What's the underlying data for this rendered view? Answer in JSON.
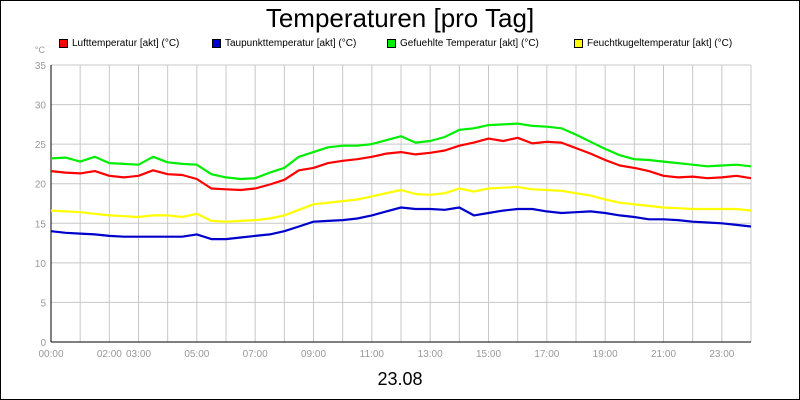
{
  "chart_data": {
    "type": "line",
    "title": "Temperaturen [pro Tag]",
    "xlabel": "23.08",
    "ylabel": "°C",
    "ylim": [
      0,
      35
    ],
    "yticks": [
      0,
      5,
      10,
      15,
      20,
      25,
      30,
      35
    ],
    "xlim": [
      0,
      24
    ],
    "xtick_labels": [
      "00:00",
      "02:00",
      "03:00",
      "05:00",
      "07:00",
      "09:00",
      "11:00",
      "13:00",
      "15:00",
      "17:00",
      "19:00",
      "21:00",
      "23:00"
    ],
    "xtick_hours": [
      0,
      2,
      3,
      5,
      7,
      9,
      11,
      13,
      15,
      17,
      19,
      21,
      23
    ],
    "grid": true,
    "legend_position": "top",
    "x": [
      0,
      0.5,
      1,
      1.5,
      2,
      2.5,
      3,
      3.5,
      4,
      4.5,
      5,
      5.5,
      6,
      6.5,
      7,
      7.5,
      8,
      8.5,
      9,
      9.5,
      10,
      10.5,
      11,
      11.5,
      12,
      12.5,
      13,
      13.5,
      14,
      14.5,
      15,
      15.5,
      16,
      16.5,
      17,
      17.5,
      18,
      18.5,
      19,
      19.5,
      20,
      20.5,
      21,
      21.5,
      22,
      22.5,
      23,
      23.5,
      24
    ],
    "series": [
      {
        "name": "Lufttemperatur [akt] (°C)",
        "color": "#ff0000",
        "values": [
          21.6,
          21.4,
          21.3,
          21.6,
          21.0,
          20.8,
          21.0,
          21.7,
          21.2,
          21.1,
          20.6,
          19.4,
          19.3,
          19.2,
          19.4,
          19.9,
          20.5,
          21.7,
          22.0,
          22.6,
          22.9,
          23.1,
          23.4,
          23.8,
          24.0,
          23.7,
          23.9,
          24.2,
          24.8,
          25.2,
          25.7,
          25.4,
          25.8,
          25.1,
          25.3,
          25.2,
          24.5,
          23.8,
          23.0,
          22.3,
          22.0,
          21.6,
          21.0,
          20.8,
          20.9,
          20.7,
          20.8,
          21.0,
          20.7
        ]
      },
      {
        "name": "Taupunkttemperatur [akt] (°C)",
        "color": "#0000cc",
        "values": [
          14.0,
          13.8,
          13.7,
          13.6,
          13.4,
          13.3,
          13.3,
          13.3,
          13.3,
          13.3,
          13.6,
          13.0,
          13.0,
          13.2,
          13.4,
          13.6,
          14.0,
          14.6,
          15.2,
          15.3,
          15.4,
          15.6,
          16.0,
          16.5,
          17.0,
          16.8,
          16.8,
          16.7,
          17.0,
          16.0,
          16.3,
          16.6,
          16.8,
          16.8,
          16.5,
          16.3,
          16.4,
          16.5,
          16.3,
          16.0,
          15.8,
          15.5,
          15.5,
          15.4,
          15.2,
          15.1,
          15.0,
          14.8,
          14.6
        ]
      },
      {
        "name": "Gefuehlte Temperatur [akt] (°C)",
        "color": "#00ee00",
        "values": [
          23.2,
          23.3,
          22.8,
          23.4,
          22.6,
          22.5,
          22.4,
          23.4,
          22.7,
          22.5,
          22.4,
          21.2,
          20.8,
          20.6,
          20.7,
          21.4,
          22.0,
          23.4,
          24.0,
          24.6,
          24.8,
          24.8,
          25.0,
          25.5,
          26.0,
          25.2,
          25.4,
          25.9,
          26.8,
          27.0,
          27.4,
          27.5,
          27.6,
          27.3,
          27.2,
          27.0,
          26.2,
          25.3,
          24.4,
          23.6,
          23.1,
          23.0,
          22.8,
          22.6,
          22.4,
          22.2,
          22.3,
          22.4,
          22.2
        ]
      },
      {
        "name": "Feuchtkugeltemperatur [akt] (°C)",
        "color": "#ffff00",
        "values": [
          16.6,
          16.5,
          16.4,
          16.2,
          16.0,
          15.9,
          15.8,
          16.0,
          16.0,
          15.8,
          16.2,
          15.3,
          15.2,
          15.3,
          15.4,
          15.6,
          16.0,
          16.7,
          17.4,
          17.6,
          17.8,
          18.0,
          18.4,
          18.8,
          19.2,
          18.7,
          18.6,
          18.8,
          19.4,
          19.0,
          19.4,
          19.5,
          19.6,
          19.3,
          19.2,
          19.1,
          18.8,
          18.5,
          18.0,
          17.6,
          17.4,
          17.2,
          17.0,
          16.9,
          16.8,
          16.8,
          16.8,
          16.8,
          16.6
        ]
      }
    ]
  }
}
